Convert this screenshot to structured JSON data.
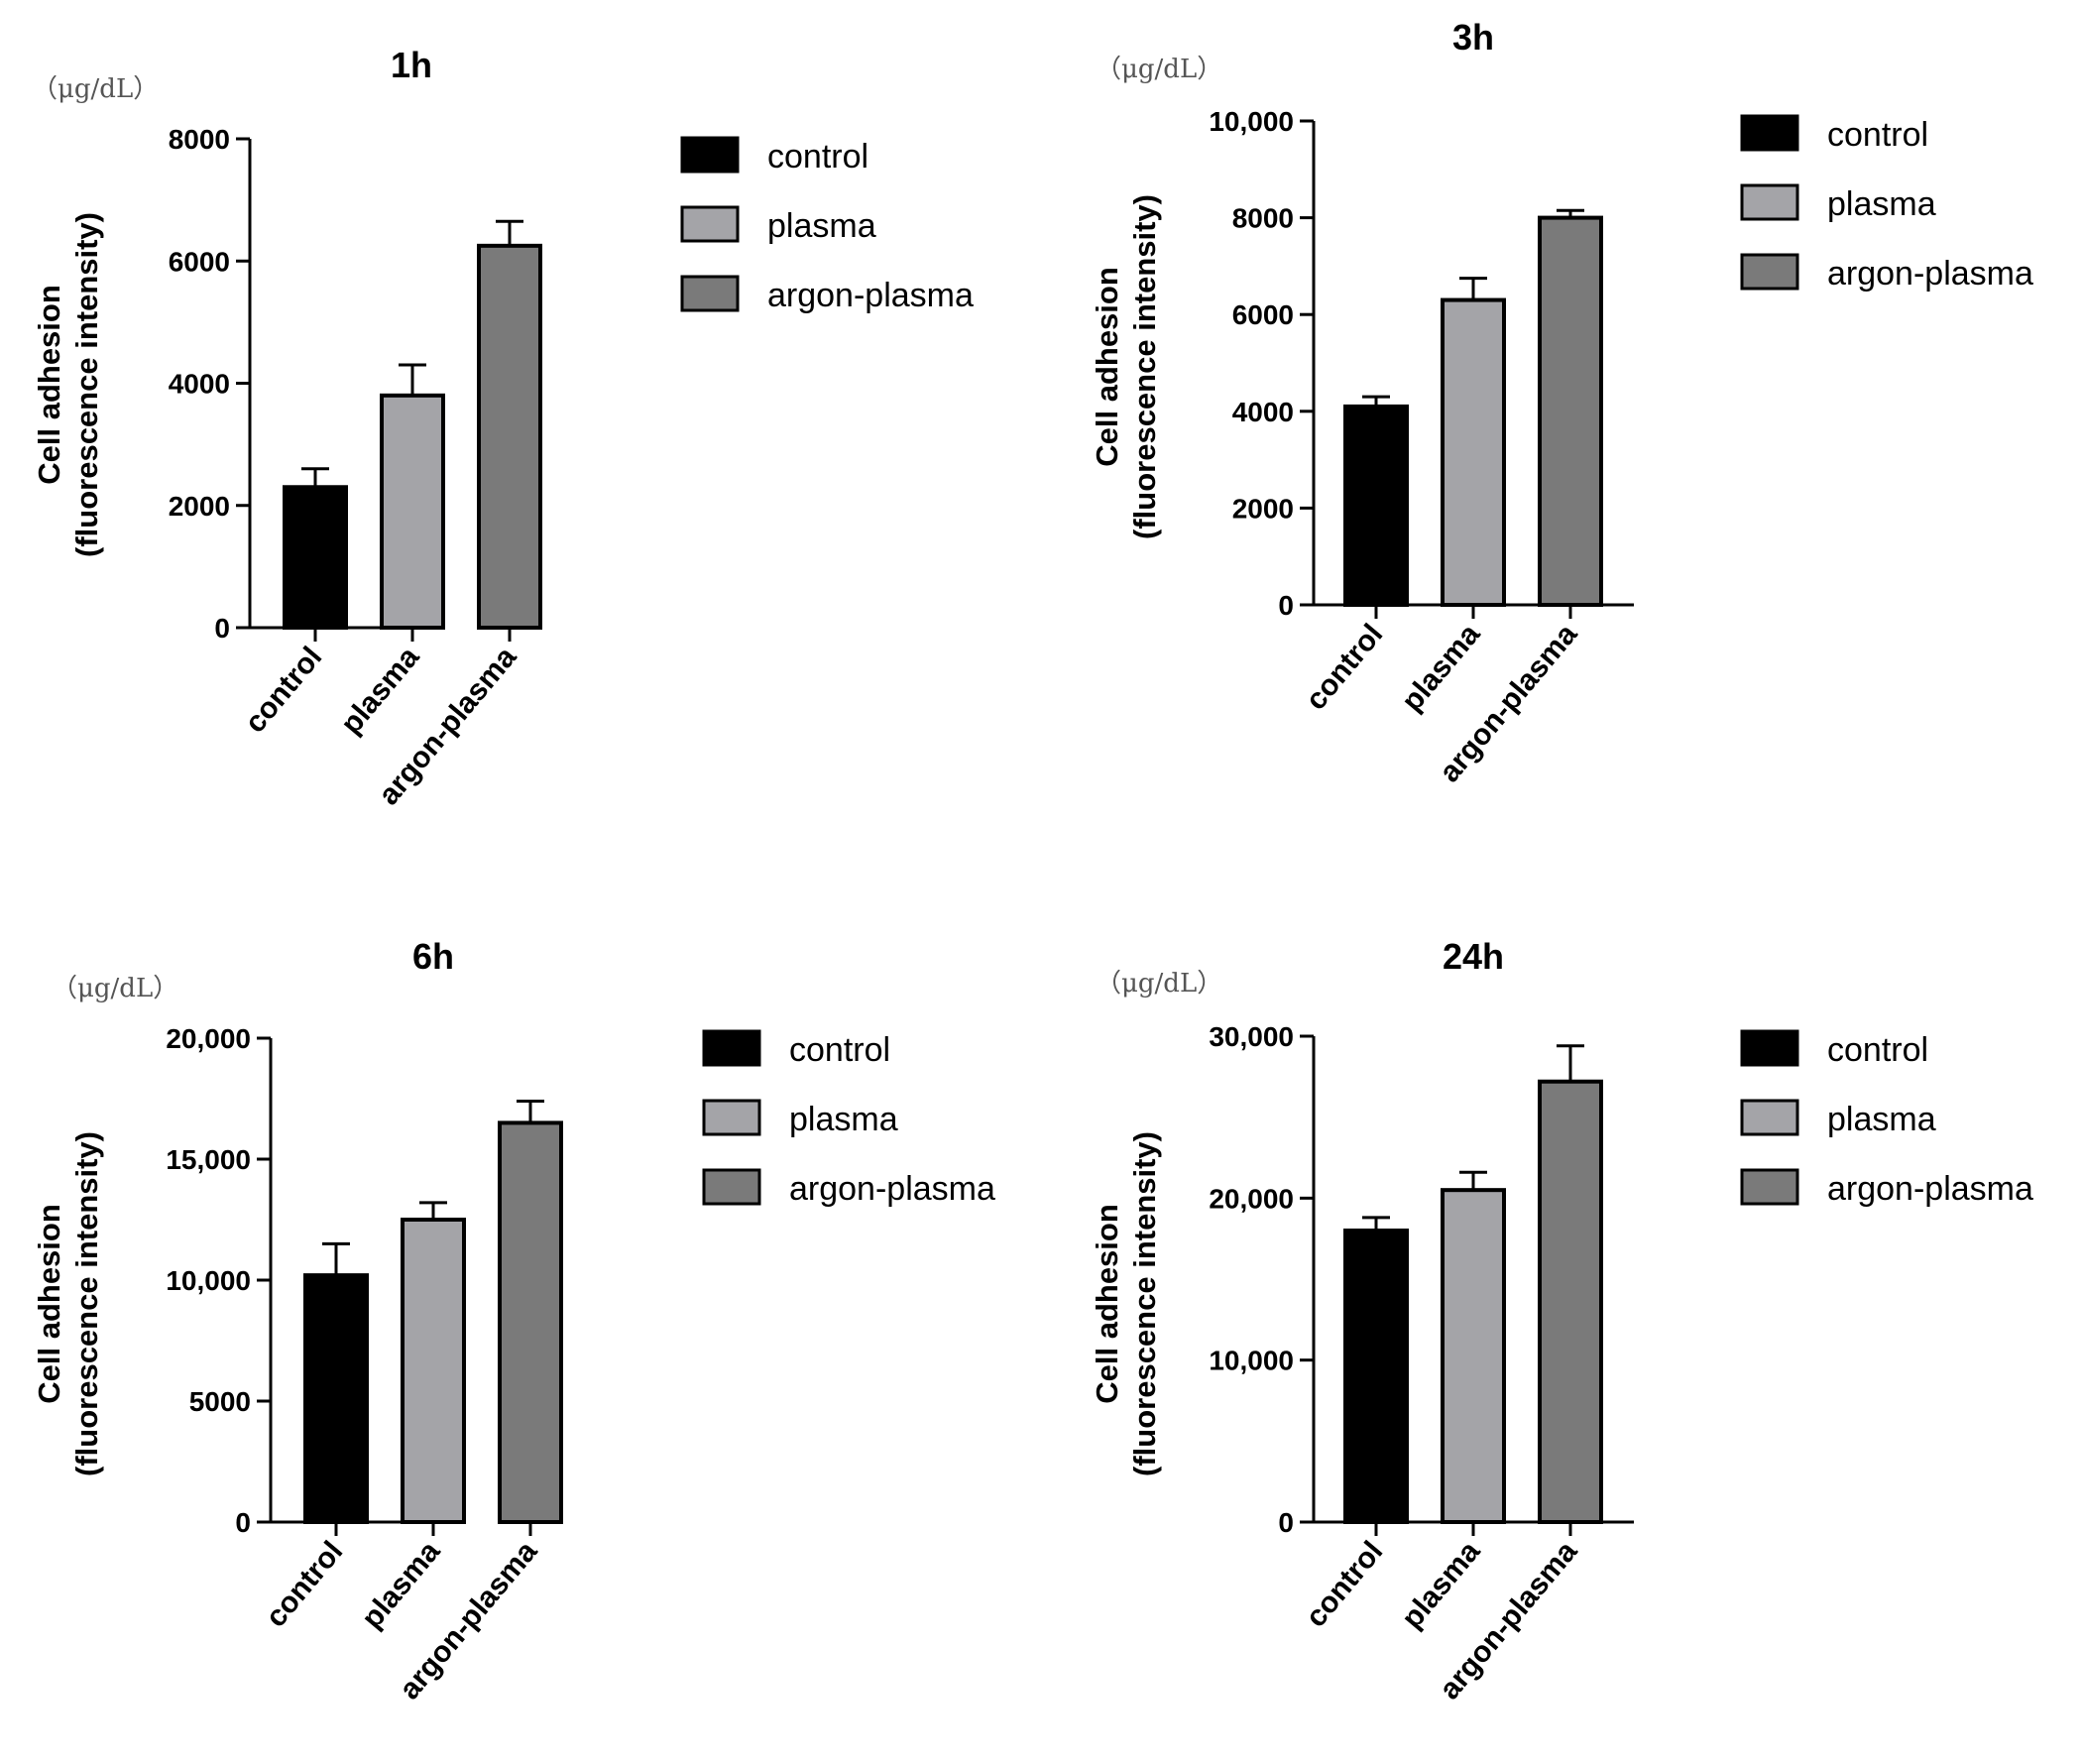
{
  "figure": {
    "unit_label": "（μg/dL）",
    "ylabel_line1": "Cell adhesion",
    "ylabel_line2": "(fluorescence intensity)"
  },
  "legend": [
    {
      "label": "control",
      "color": "#000000"
    },
    {
      "label": "plasma",
      "color": "#a4a4a8"
    },
    {
      "label": "argon-plasma",
      "color": "#7a7a7a"
    }
  ],
  "chart_data": [
    {
      "type": "bar",
      "title": "1h",
      "unit": "（μg/dL）",
      "ylabel": "Cell adhesion (fluorescence intensity)",
      "categories": [
        "control",
        "plasma",
        "argon-plasma"
      ],
      "values": [
        2300,
        3800,
        6250
      ],
      "errors": [
        300,
        500,
        400
      ],
      "colors": [
        "#000000",
        "#a4a4a8",
        "#7a7a7a"
      ],
      "ylim": [
        0,
        8000
      ],
      "yticks": [
        0,
        2000,
        4000,
        6000,
        8000
      ],
      "ytick_labels": [
        "0",
        "2000",
        "4000",
        "6000",
        "8000"
      ],
      "legend": [
        "control",
        "plasma",
        "argon-plasma"
      ]
    },
    {
      "type": "bar",
      "title": "3h",
      "unit": "（μg/dL）",
      "ylabel": "Cell adhesion (fluorescence intensity)",
      "categories": [
        "control",
        "plasma",
        "argon-plasma"
      ],
      "values": [
        4100,
        6300,
        8000
      ],
      "errors": [
        200,
        450,
        150
      ],
      "colors": [
        "#000000",
        "#a4a4a8",
        "#7a7a7a"
      ],
      "ylim": [
        0,
        10000
      ],
      "yticks": [
        0,
        2000,
        4000,
        6000,
        8000,
        10000
      ],
      "ytick_labels": [
        "0",
        "2000",
        "4000",
        "6000",
        "8000",
        "10,000"
      ],
      "legend": [
        "control",
        "plasma",
        "argon-plasma"
      ]
    },
    {
      "type": "bar",
      "title": "6h",
      "unit": "（μg/dL）",
      "ylabel": "Cell adhesion (fluorescence intensity)",
      "categories": [
        "control",
        "plasma",
        "argon-plasma"
      ],
      "values": [
        10200,
        12500,
        16500
      ],
      "errors": [
        1300,
        700,
        900
      ],
      "colors": [
        "#000000",
        "#a4a4a8",
        "#7a7a7a"
      ],
      "ylim": [
        0,
        20000
      ],
      "yticks": [
        0,
        5000,
        10000,
        15000,
        20000
      ],
      "ytick_labels": [
        "0",
        "5000",
        "10,000",
        "15,000",
        "20,000"
      ],
      "legend": [
        "control",
        "plasma",
        "argon-plasma"
      ]
    },
    {
      "type": "bar",
      "title": "24h",
      "unit": "（μg/dL）",
      "ylabel": "Cell adhesion (fluorescence intensity)",
      "categories": [
        "control",
        "plasma",
        "argon-plasma"
      ],
      "values": [
        18000,
        20500,
        27200
      ],
      "errors": [
        800,
        1100,
        2200
      ],
      "colors": [
        "#000000",
        "#a4a4a8",
        "#7a7a7a"
      ],
      "ylim": [
        0,
        30000
      ],
      "yticks": [
        0,
        10000,
        20000,
        30000
      ],
      "ytick_labels": [
        "0",
        "10,000",
        "20,000",
        "30,000"
      ],
      "legend": [
        "control",
        "plasma",
        "argon-plasma"
      ]
    }
  ]
}
